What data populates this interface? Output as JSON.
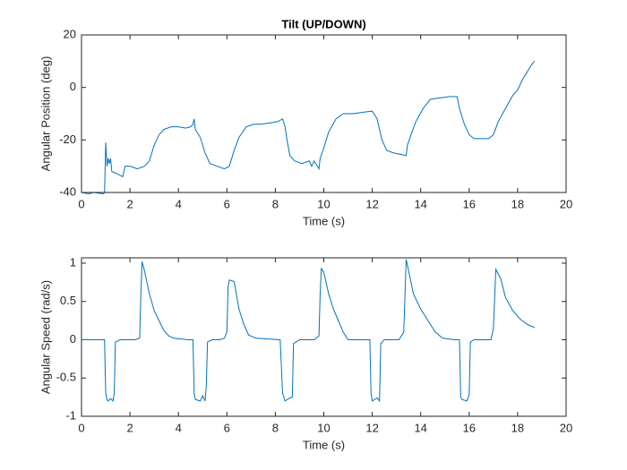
{
  "chart_data": [
    {
      "type": "line",
      "title": "Tilt (UP/DOWN)",
      "xlabel": "Time (s)",
      "ylabel": "Angular Position (deg)",
      "color": "#0072bd",
      "grid": false,
      "xlim": [
        0,
        20
      ],
      "xticks": [
        0,
        2,
        4,
        6,
        8,
        10,
        12,
        14,
        16,
        18,
        20
      ],
      "ylim": [
        -40,
        20
      ],
      "yticks": [
        -40,
        -20,
        0,
        20
      ],
      "x": [
        0,
        0.3,
        0.5,
        0.9,
        0.95,
        1.0,
        1.05,
        1.1,
        1.15,
        1.2,
        1.25,
        1.5,
        1.7,
        1.8,
        2.0,
        2.3,
        2.6,
        2.8,
        3.0,
        3.2,
        3.4,
        3.7,
        4.0,
        4.3,
        4.5,
        4.6,
        4.65,
        4.7,
        4.9,
        5.1,
        5.3,
        5.6,
        5.9,
        6.1,
        6.3,
        6.5,
        6.8,
        7.1,
        7.4,
        7.8,
        8.1,
        8.3,
        8.4,
        8.5,
        8.6,
        8.8,
        9.1,
        9.4,
        9.5,
        9.6,
        9.8,
        9.85,
        10.0,
        10.2,
        10.5,
        10.8,
        11.2,
        11.6,
        12.0,
        12.2,
        12.4,
        12.6,
        12.9,
        13.2,
        13.4,
        13.45,
        13.6,
        13.8,
        14.1,
        14.4,
        14.8,
        15.2,
        15.5,
        15.6,
        15.8,
        16.0,
        16.2,
        16.5,
        16.8,
        17.0,
        17.2,
        17.5,
        17.8,
        18.0,
        18.2,
        18.4,
        18.6,
        18.7
      ],
      "values": [
        -40,
        -40.5,
        -40,
        -40.5,
        -40,
        -21,
        -30,
        -27,
        -29,
        -27,
        -32,
        -33,
        -34,
        -30,
        -30,
        -31,
        -30,
        -28,
        -22,
        -18,
        -16,
        -15,
        -15,
        -15.5,
        -15,
        -14,
        -12,
        -16,
        -19,
        -25,
        -29,
        -30,
        -31,
        -30,
        -24,
        -19,
        -15,
        -14,
        -14,
        -13.5,
        -13,
        -12,
        -15,
        -21,
        -26,
        -28,
        -29,
        -28,
        -30,
        -28,
        -31,
        -27,
        -23,
        -17,
        -12,
        -10,
        -10,
        -9.5,
        -9,
        -12,
        -20,
        -24,
        -25,
        -25.5,
        -26,
        -22,
        -18,
        -13,
        -8,
        -4.5,
        -4,
        -3.5,
        -3.5,
        -8,
        -14,
        -18,
        -19.5,
        -19.5,
        -19.5,
        -18,
        -13,
        -8,
        -3,
        -1,
        3,
        6,
        9,
        10
      ]
    },
    {
      "type": "line",
      "xlabel": "Time (s)",
      "ylabel": "Angular Speed (rad/s)",
      "color": "#0072bd",
      "grid": false,
      "xlim": [
        0,
        20
      ],
      "xticks": [
        0,
        2,
        4,
        6,
        8,
        10,
        12,
        14,
        16,
        18,
        20
      ],
      "ylim": [
        -1,
        1.07
      ],
      "yticks": [
        -1,
        -0.5,
        0,
        0.5,
        1
      ],
      "x": [
        0,
        0.95,
        1.0,
        1.05,
        1.1,
        1.2,
        1.3,
        1.35,
        1.4,
        1.6,
        2.2,
        2.4,
        2.45,
        2.5,
        2.6,
        2.8,
        3.0,
        3.2,
        3.4,
        3.6,
        3.8,
        4.4,
        4.6,
        4.65,
        4.7,
        4.9,
        5.0,
        5.1,
        5.15,
        5.2,
        5.4,
        5.7,
        5.9,
        6.0,
        6.05,
        6.1,
        6.3,
        6.5,
        6.7,
        6.9,
        7.2,
        8.2,
        8.3,
        8.4,
        8.6,
        8.7,
        8.75,
        9.0,
        9.6,
        9.8,
        9.85,
        9.9,
        10.0,
        10.2,
        10.4,
        10.6,
        10.8,
        11.0,
        11.9,
        11.95,
        12.0,
        12.2,
        12.3,
        12.35,
        12.5,
        13.1,
        13.3,
        13.4,
        13.5,
        13.7,
        14.0,
        14.3,
        14.6,
        14.9,
        15.4,
        15.6,
        15.65,
        15.7,
        15.9,
        16.0,
        16.05,
        16.2,
        16.9,
        17.0,
        17.1,
        17.3,
        17.5,
        17.8,
        18.1,
        18.4,
        18.7
      ],
      "values": [
        0,
        0,
        -0.7,
        -0.78,
        -0.8,
        -0.77,
        -0.8,
        -0.7,
        -0.03,
        0,
        0,
        0.02,
        0.6,
        1.02,
        0.9,
        0.6,
        0.38,
        0.25,
        0.12,
        0.05,
        0.02,
        0,
        0,
        -0.7,
        -0.78,
        -0.8,
        -0.73,
        -0.8,
        -0.6,
        -0.03,
        0,
        0,
        0.02,
        0.1,
        0.7,
        0.78,
        0.76,
        0.4,
        0.2,
        0.06,
        0.02,
        0,
        -0.7,
        -0.8,
        -0.76,
        -0.75,
        -0.05,
        0,
        0,
        0.05,
        0.6,
        0.93,
        0.88,
        0.6,
        0.4,
        0.25,
        0.1,
        0,
        0,
        -0.7,
        -0.8,
        -0.76,
        -0.8,
        -0.05,
        0,
        0,
        0.1,
        1.05,
        0.9,
        0.6,
        0.4,
        0.25,
        0.1,
        0.02,
        0,
        0,
        -0.75,
        -0.78,
        -0.8,
        -0.72,
        -0.03,
        0,
        0,
        0.15,
        0.92,
        0.8,
        0.55,
        0.38,
        0.27,
        0.2,
        0.16
      ]
    }
  ]
}
